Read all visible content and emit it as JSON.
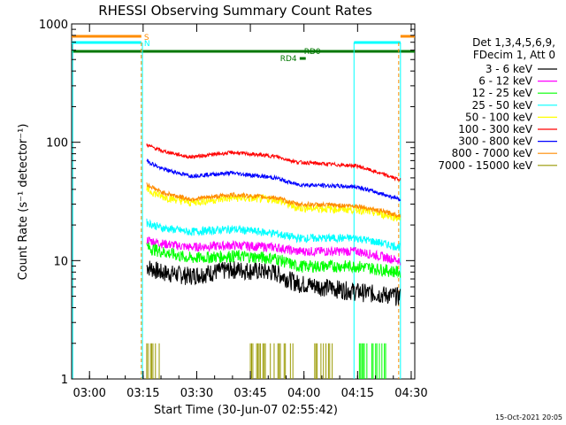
{
  "chart_data": {
    "type": "line",
    "title": "RHESSI Observing Summary Count Rates",
    "xlabel": "Start Time (30-Jun-07 02:55:42)",
    "ylabel": "Count Rate (s⁻¹ detector⁻¹)",
    "y_scale": "log",
    "ylim": [
      1,
      1000
    ],
    "xlim_minutes_after_0255": [
      0,
      96
    ],
    "x_ticks": [
      {
        "label": "03:00",
        "minute": 5
      },
      {
        "label": "03:15",
        "minute": 20
      },
      {
        "label": "03:30",
        "minute": 35
      },
      {
        "label": "03:45",
        "minute": 50
      },
      {
        "label": "04:00",
        "minute": 65
      },
      {
        "label": "04:15",
        "minute": 80
      },
      {
        "label": "04:30",
        "minute": 95
      }
    ],
    "y_ticks": [
      {
        "label": "1",
        "value": 1
      },
      {
        "label": "10",
        "value": 10
      },
      {
        "label": "100",
        "value": 100
      },
      {
        "label": "1000",
        "value": 1000
      }
    ],
    "legend_header": [
      "Det 1,3,4,5,6,9,",
      "FDecim 1, Att 0"
    ],
    "legend_placement": "right",
    "series": [
      {
        "name": "3 - 6 keV",
        "color": "#000000",
        "values": [
          9,
          8,
          7.5,
          8.5,
          8,
          6.5,
          5.5,
          5
        ]
      },
      {
        "name": "6 - 12 keV",
        "color": "#ff00ff",
        "values": [
          15,
          14,
          13,
          13.5,
          13,
          12,
          12,
          10
        ]
      },
      {
        "name": "12 - 25 keV",
        "color": "#00ff00",
        "values": [
          13,
          12,
          10.5,
          11,
          10.5,
          9,
          9,
          8
        ]
      },
      {
        "name": "25 - 50 keV",
        "color": "#00ffff",
        "values": [
          21,
          19,
          17.5,
          18.5,
          17,
          15.5,
          15.5,
          13
        ]
      },
      {
        "name": "50 - 100 keV",
        "color": "#ffff00",
        "values": [
          40,
          35,
          31,
          34,
          33,
          28,
          27,
          23
        ]
      },
      {
        "name": "100 - 300 keV",
        "color": "#ff0000",
        "values": [
          95,
          85,
          75,
          82,
          76,
          68,
          63,
          48
        ]
      },
      {
        "name": "300 - 800 keV",
        "color": "#0000ff",
        "values": [
          70,
          60,
          52,
          55,
          50,
          44,
          42,
          33
        ]
      },
      {
        "name": "800 - 7000 keV",
        "color": "#ff8c00",
        "values": [
          44,
          38,
          33,
          36,
          34,
          30,
          29,
          24
        ]
      },
      {
        "name": "7000 - 15000 keV",
        "color": "#999900",
        "values": [
          2,
          2,
          2,
          2,
          2,
          2,
          2,
          2
        ]
      }
    ],
    "series_minutes": [
      21,
      25,
      33,
      45,
      57,
      63,
      80,
      92
    ],
    "flags": [
      {
        "label": "S",
        "color": "#ff8c00"
      },
      {
        "label": "N",
        "color": "#00ffff"
      },
      {
        "label": "RD0",
        "color": "#007700"
      },
      {
        "label": "RD4",
        "color": "#007700"
      }
    ],
    "footer_date": "15-Oct-2021 20:05"
  }
}
